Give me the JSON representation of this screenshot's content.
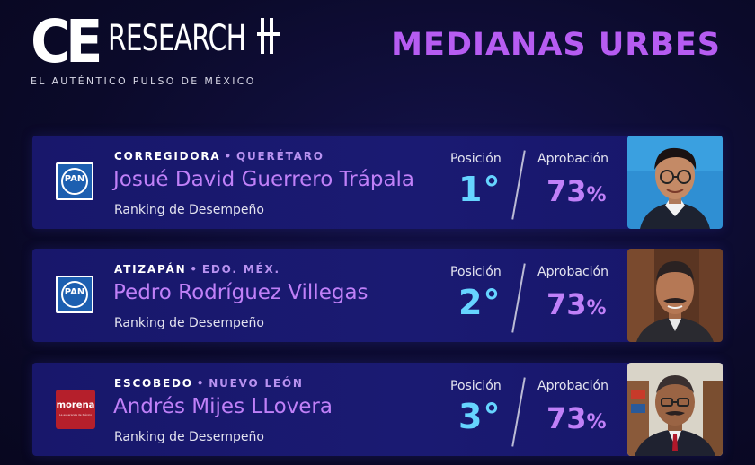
{
  "brand": {
    "logo_ce": "CE",
    "logo_research": "RESEARCH",
    "tagline": "EL AUTÉNTICO PULSO DE MÉXICO"
  },
  "headline": "MEDIANAS URBES",
  "colors": {
    "background": "#0b0a2a",
    "card": "#18176b",
    "accent_purple": "#c080f8",
    "accent_blue": "#66d4ff",
    "pan_blue": "#1c5fb0",
    "morena_red": "#b51f2b"
  },
  "labels": {
    "position": "Posición",
    "approval": "Aprobación",
    "ranking": "Ranking de Desempeño"
  },
  "rows": [
    {
      "city": "CORREGIDORA",
      "state": "QUERÉTARO",
      "name": "Josué David Guerrero Trápala",
      "party": "PAN",
      "party_logo_text": "PAN",
      "position": "1°",
      "approval": "73",
      "approval_unit": "%",
      "photo": "portrait-young-man-glasses"
    },
    {
      "city": "ATIZAPÁN",
      "state": "EDO. MÉX.",
      "name": "Pedro Rodríguez Villegas",
      "party": "PAN",
      "party_logo_text": "PAN",
      "position": "2°",
      "approval": "73",
      "approval_unit": "%",
      "photo": "portrait-man-mustache"
    },
    {
      "city": "ESCOBEDO",
      "state": "NUEVO LEÓN",
      "name": "Andrés Mijes LLovera",
      "party": "Morena",
      "party_logo_text": "morena",
      "party_logo_sub": "La esperanza de México",
      "position": "3°",
      "approval": "73",
      "approval_unit": "%",
      "photo": "portrait-man-glasses-suit"
    }
  ]
}
